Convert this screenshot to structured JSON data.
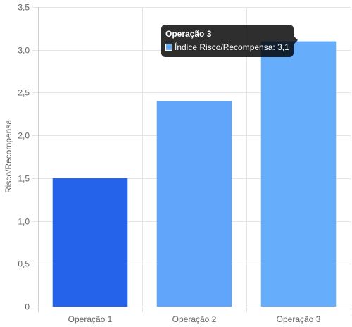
{
  "chart_data": {
    "type": "bar",
    "categories": [
      "Operação 1",
      "Operação 2",
      "Operação 3"
    ],
    "series": [
      {
        "name": "Índice Risco/Recompensa",
        "values": [
          1.5,
          2.4,
          3.1
        ]
      }
    ],
    "bar_colors": [
      "#2563eb",
      "#60a5fa",
      "#66aefc"
    ],
    "ylabel": "Risco/Recompensa",
    "ylim": [
      0,
      3.5
    ],
    "y_ticks": [
      "0",
      "0,5",
      "1,0",
      "1,5",
      "2,0",
      "2,5",
      "3,0",
      "3,5"
    ],
    "grid": true
  },
  "tooltip": {
    "title": "Operação 3",
    "label": "Índice Risco/Recompensa: 3,1",
    "swatch_color": "#66aefc"
  }
}
